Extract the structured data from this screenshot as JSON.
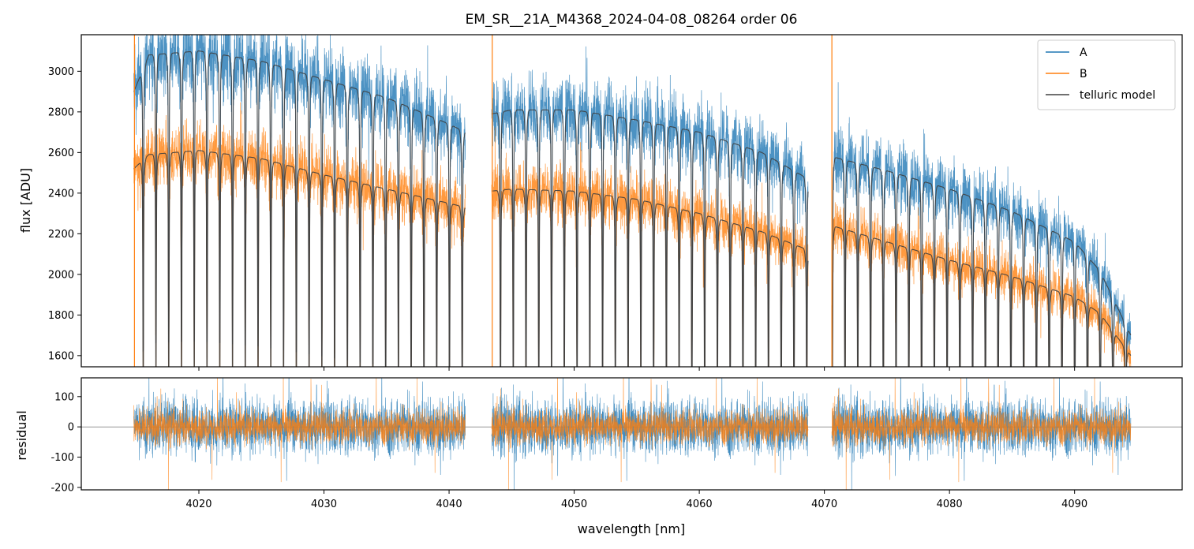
{
  "chart_data": [
    {
      "type": "line",
      "title": "EM_SR__21A_M4368_2024-04-08_08264  order 06",
      "xlabel": "",
      "ylabel": "flux [ADU]",
      "xlim": [
        4010.6,
        4098.6
      ],
      "ylim": [
        1545,
        3180
      ],
      "yticks": [
        1600,
        1800,
        2000,
        2200,
        2400,
        2600,
        2800,
        3000
      ],
      "xticks": [
        4020,
        4030,
        4040,
        4050,
        4060,
        4070,
        4080,
        4090
      ],
      "legend": {
        "position": "top-right",
        "entries": [
          "A",
          "B",
          "telluric model"
        ]
      },
      "segments": [
        [
          4014.8,
          4041.3
        ],
        [
          4043.4,
          4068.7
        ],
        [
          4070.6,
          4094.5
        ]
      ],
      "line_period_nm": 1.02,
      "series": [
        {
          "name": "A",
          "color": "#1f77b4",
          "continuum_x": [
            4014.8,
            4016,
            4020,
            4025,
            4030,
            4035,
            4040,
            4041.3,
            4043.4,
            4045,
            4050,
            4055,
            4060,
            4065,
            4068.7,
            4070.6,
            4075,
            4080,
            4085,
            4090,
            4092,
            4094.5
          ],
          "continuum_y": [
            2900,
            3080,
            3100,
            3050,
            2960,
            2870,
            2740,
            2700,
            2790,
            2810,
            2810,
            2760,
            2700,
            2600,
            2470,
            2580,
            2510,
            2420,
            2310,
            2160,
            2020,
            1700
          ]
        },
        {
          "name": "B",
          "color": "#ff7f0e",
          "continuum_x": [
            4014.8,
            4016,
            4020,
            4025,
            4030,
            4035,
            4040,
            4041.3,
            4043.4,
            4045,
            4050,
            4055,
            4060,
            4065,
            4068.7,
            4070.6,
            4075,
            4080,
            4085,
            4090,
            4092,
            4094.5
          ],
          "continuum_y": [
            2520,
            2590,
            2610,
            2570,
            2490,
            2420,
            2350,
            2330,
            2410,
            2420,
            2410,
            2370,
            2300,
            2210,
            2120,
            2240,
            2160,
            2070,
            1990,
            1890,
            1810,
            1600
          ]
        },
        {
          "name": "telluric model",
          "color": "#404040"
        }
      ]
    },
    {
      "type": "line",
      "xlabel": "wavelength [nm]",
      "ylabel": "residual",
      "xlim": [
        4010.6,
        4098.6
      ],
      "ylim": [
        -208,
        162
      ],
      "yticks": [
        -200,
        -100,
        0,
        100
      ],
      "xticks": [
        4020,
        4030,
        4040,
        4050,
        4060,
        4070,
        4080,
        4090
      ],
      "zero_line": 0,
      "series": [
        {
          "name": "A",
          "color": "#1f77b4",
          "noise_amplitude": 90
        },
        {
          "name": "B",
          "color": "#ff7f0e",
          "noise_amplitude": 55
        }
      ]
    }
  ]
}
